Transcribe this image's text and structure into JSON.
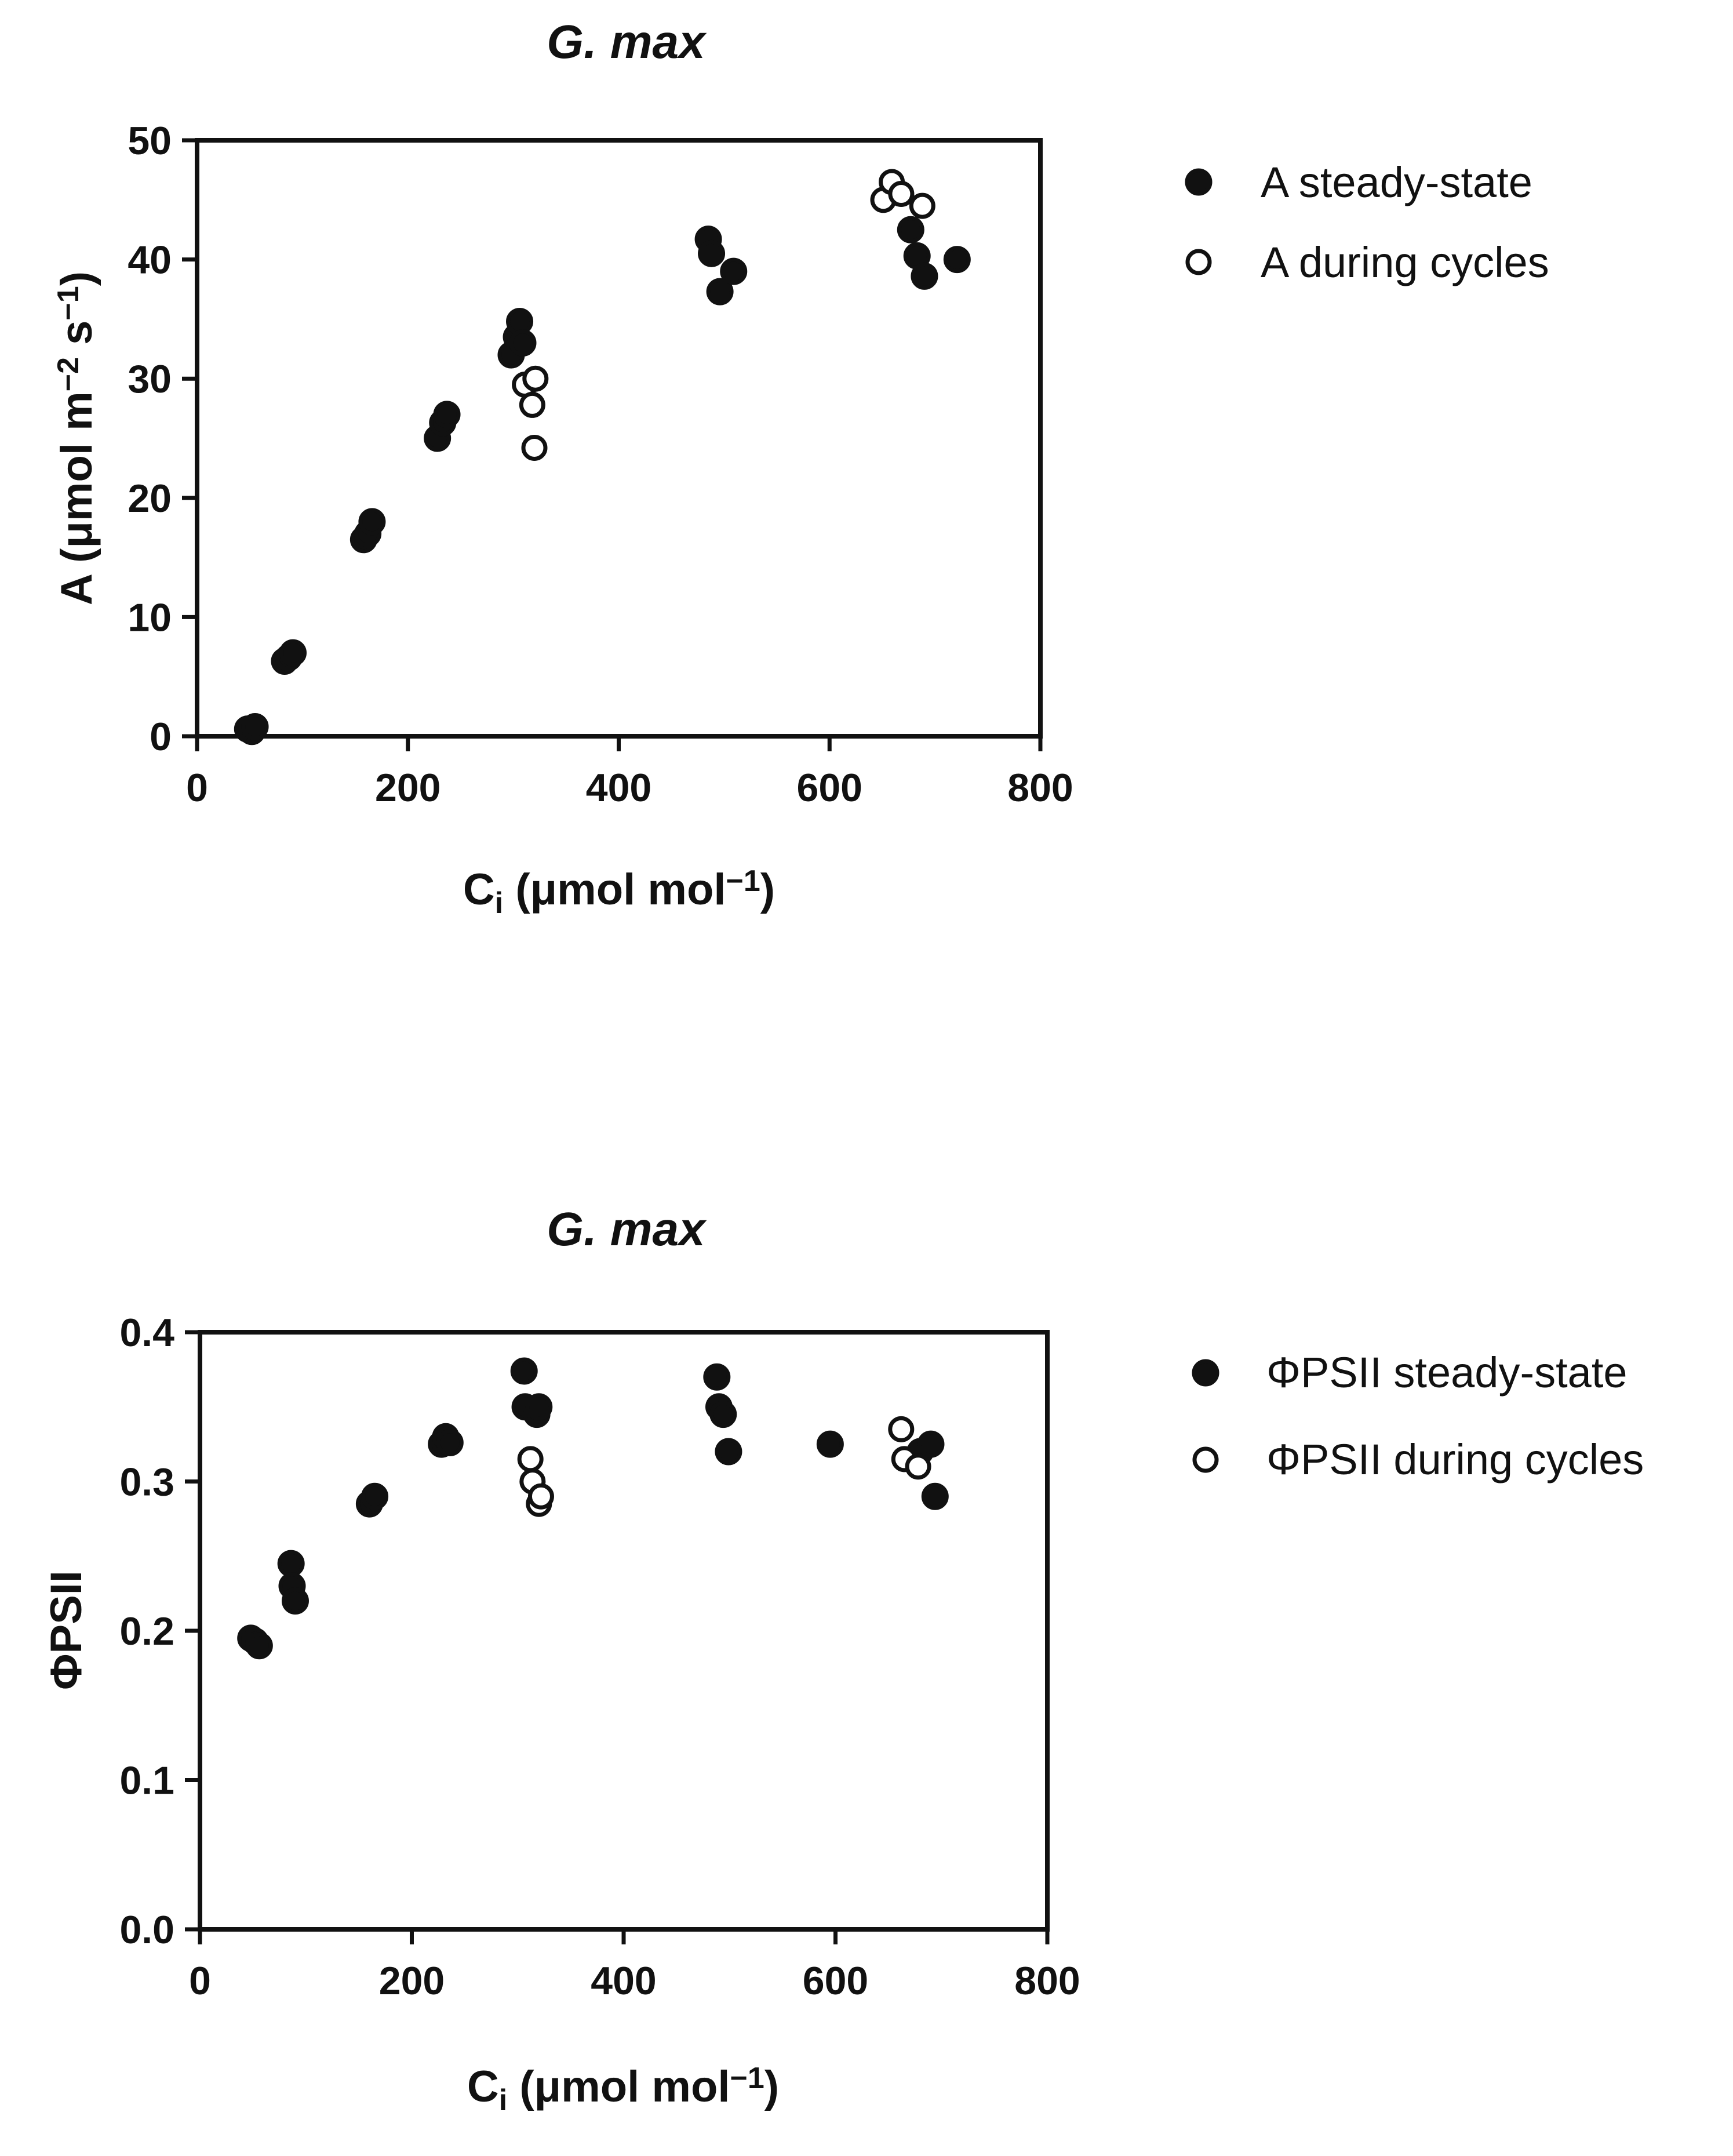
{
  "chart_data": [
    {
      "type": "scatter",
      "title": "G. max",
      "xlabel": {
        "main": "C",
        "sub": "i",
        "unit": " (μmol mol",
        "exp": "−1",
        "close": ")"
      },
      "ylabel": {
        "main": "A (μmol m",
        "exp1": "−2",
        "mid": " s",
        "exp2": "−1",
        "close": ")"
      },
      "xlim": [
        0,
        800
      ],
      "ylim": [
        0,
        50
      ],
      "xticks": [
        0,
        200,
        400,
        600,
        800
      ],
      "yticks": [
        0,
        10,
        20,
        30,
        40,
        50
      ],
      "xtick_labels": [
        "0",
        "200",
        "400",
        "600",
        "800"
      ],
      "ytick_labels": [
        "0",
        "10",
        "20",
        "30",
        "40",
        "50"
      ],
      "legend_position": "right",
      "series": [
        {
          "name": "A steady-state",
          "marker": "filled-circle",
          "points": [
            [
              48,
              0.6
            ],
            [
              52,
              0.4
            ],
            [
              55,
              0.8
            ],
            [
              83,
              6.3
            ],
            [
              87,
              6.6
            ],
            [
              91,
              7
            ],
            [
              158,
              16.5
            ],
            [
              162,
              17
            ],
            [
              166,
              18
            ],
            [
              228,
              25
            ],
            [
              233,
              26.3
            ],
            [
              237,
              27
            ],
            [
              298,
              32
            ],
            [
              303,
              33.5
            ],
            [
              306,
              34.8
            ],
            [
              309,
              33
            ],
            [
              485,
              41.7
            ],
            [
              488,
              40.5
            ],
            [
              496,
              37.3
            ],
            [
              509,
              39
            ],
            [
              677,
              42.5
            ],
            [
              683,
              40.3
            ],
            [
              690,
              38.6
            ],
            [
              721,
              40
            ]
          ],
          "color": "#111111"
        },
        {
          "name": "A during cycles",
          "marker": "open-circle",
          "points": [
            [
              311,
              29.5
            ],
            [
              318,
              27.8
            ],
            [
              321,
              30
            ],
            [
              320,
              24.2
            ],
            [
              651,
              45
            ],
            [
              659,
              46.5
            ],
            [
              668,
              45.5
            ],
            [
              688,
              44.5
            ]
          ],
          "color": "#111111"
        }
      ]
    },
    {
      "type": "scatter",
      "title": "G. max",
      "xlabel": {
        "main": "C",
        "sub": "i",
        "unit": " (μmol mol",
        "exp": "−1",
        "close": ")"
      },
      "ylabel": {
        "main": "ΦPSII"
      },
      "xlim": [
        0,
        800
      ],
      "ylim": [
        0.0,
        0.4
      ],
      "xticks": [
        0,
        200,
        400,
        600,
        800
      ],
      "yticks": [
        0.0,
        0.1,
        0.2,
        0.3,
        0.4
      ],
      "xtick_labels": [
        "0",
        "200",
        "400",
        "600",
        "800"
      ],
      "ytick_labels": [
        "0.0",
        "0.1",
        "0.2",
        "0.3",
        "0.4"
      ],
      "legend_position": "right",
      "series": [
        {
          "name": "ΦPSII steady-state",
          "marker": "filled-circle",
          "points": [
            [
              48,
              0.195
            ],
            [
              52,
              0.193
            ],
            [
              56,
              0.19
            ],
            [
              86,
              0.245
            ],
            [
              87,
              0.23
            ],
            [
              90,
              0.22
            ],
            [
              160,
              0.285
            ],
            [
              165,
              0.29
            ],
            [
              228,
              0.325
            ],
            [
              232,
              0.33
            ],
            [
              236,
              0.326
            ],
            [
              306,
              0.374
            ],
            [
              307,
              0.35
            ],
            [
              318,
              0.345
            ],
            [
              320,
              0.35
            ],
            [
              488,
              0.37
            ],
            [
              490,
              0.35
            ],
            [
              494,
              0.345
            ],
            [
              499,
              0.32
            ],
            [
              595,
              0.325
            ],
            [
              680,
              0.32
            ],
            [
              690,
              0.325
            ],
            [
              694,
              0.29
            ]
          ],
          "color": "#111111"
        },
        {
          "name": "ΦPSII during cycles",
          "marker": "open-circle",
          "points": [
            [
              312,
              0.315
            ],
            [
              314,
              0.3
            ],
            [
              320,
              0.285
            ],
            [
              322,
              0.29
            ],
            [
              662,
              0.335
            ],
            [
              665,
              0.315
            ],
            [
              678,
              0.31
            ]
          ],
          "color": "#111111"
        }
      ]
    }
  ]
}
